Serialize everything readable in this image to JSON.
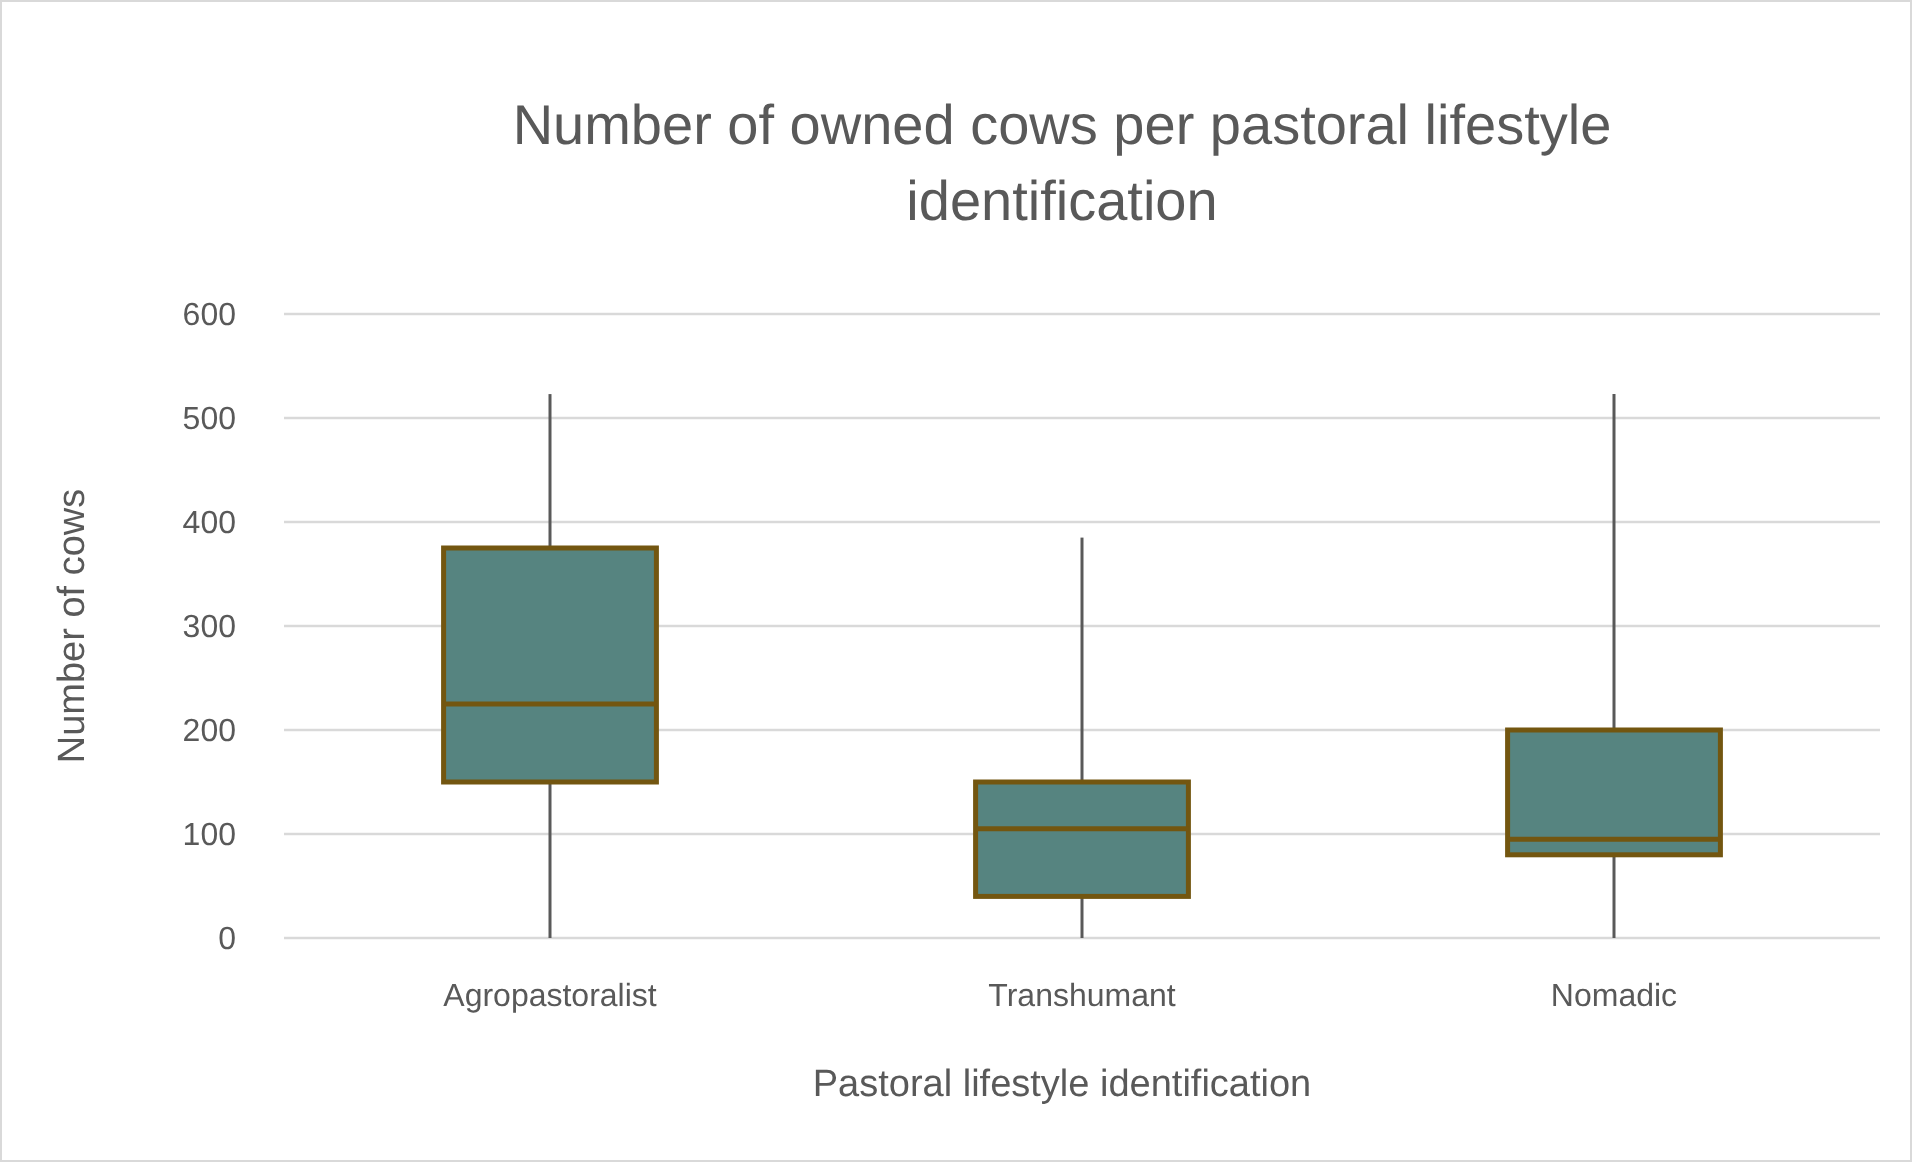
{
  "chart_data": {
    "type": "box",
    "title": "Number of owned cows per pastoral lifestyle identification",
    "xlabel": "Pastoral lifestyle identification",
    "ylabel": "Number of cows",
    "categories": [
      "Agropastoralist",
      "Transhumant",
      "Nomadic"
    ],
    "boxes": [
      {
        "low": 0,
        "q1": 150,
        "median": 225,
        "q3": 375,
        "high": 523
      },
      {
        "low": 0,
        "q1": 40,
        "median": 105,
        "q3": 150,
        "high": 385
      },
      {
        "low": 0,
        "q1": 80,
        "median": 95,
        "q3": 200,
        "high": 523
      }
    ],
    "color": "#568480",
    "ylim": [
      0,
      600
    ],
    "yticks": [
      0,
      100,
      200,
      300,
      400,
      500,
      600
    ],
    "grid": "y"
  }
}
